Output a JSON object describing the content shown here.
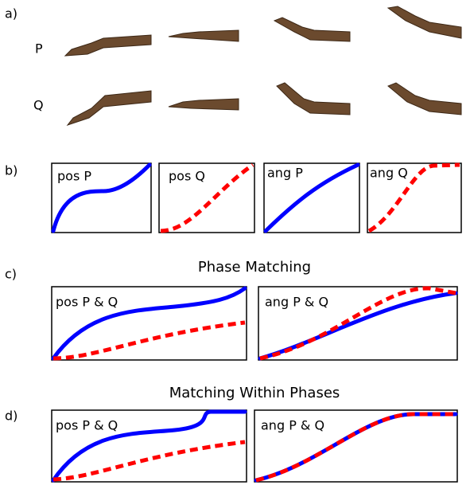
{
  "panel_a": {
    "label": "a)",
    "rows": [
      "P",
      "Q"
    ]
  },
  "panel_b": {
    "label": "b)",
    "plots": [
      "pos P",
      "pos Q",
      "ang P",
      "ang Q"
    ]
  },
  "panel_c": {
    "label": "c)",
    "title": "Phase Matching",
    "plots": [
      "pos P & Q",
      "ang P & Q"
    ]
  },
  "panel_d": {
    "label": "d)",
    "title": "Matching Within Phases",
    "plots": [
      "pos P & Q",
      "ang P & Q"
    ]
  }
}
